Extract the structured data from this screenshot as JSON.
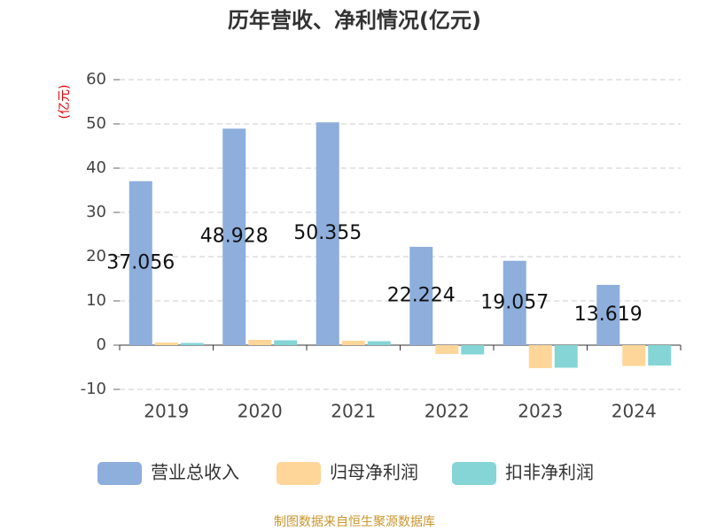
{
  "chart_data": {
    "type": "bar",
    "title": "历年营收、净利情况(亿元)",
    "y_axis_label": "(亿元)",
    "source": "制图数据来自恒生聚源数据库",
    "categories": [
      "2019",
      "2020",
      "2021",
      "2022",
      "2023",
      "2024"
    ],
    "series": [
      {
        "name": "营业总收入",
        "color": "#8eaedc",
        "show_labels": true,
        "values": [
          37.056,
          48.928,
          50.355,
          22.224,
          19.057,
          13.619
        ]
      },
      {
        "name": "归母净利润",
        "color": "#ffd699",
        "values": [
          0.6,
          1.2,
          1.0,
          -2.0,
          -5.2,
          -4.7
        ]
      },
      {
        "name": "扣非净利润",
        "color": "#85d5d6",
        "values": [
          0.5,
          1.1,
          0.9,
          -2.1,
          -5.1,
          -4.6
        ]
      }
    ],
    "ylim": [
      -10,
      60
    ],
    "yticks": [
      -10,
      0,
      10,
      20,
      30,
      40,
      50,
      60
    ],
    "grid": true,
    "legend": "bottom"
  }
}
